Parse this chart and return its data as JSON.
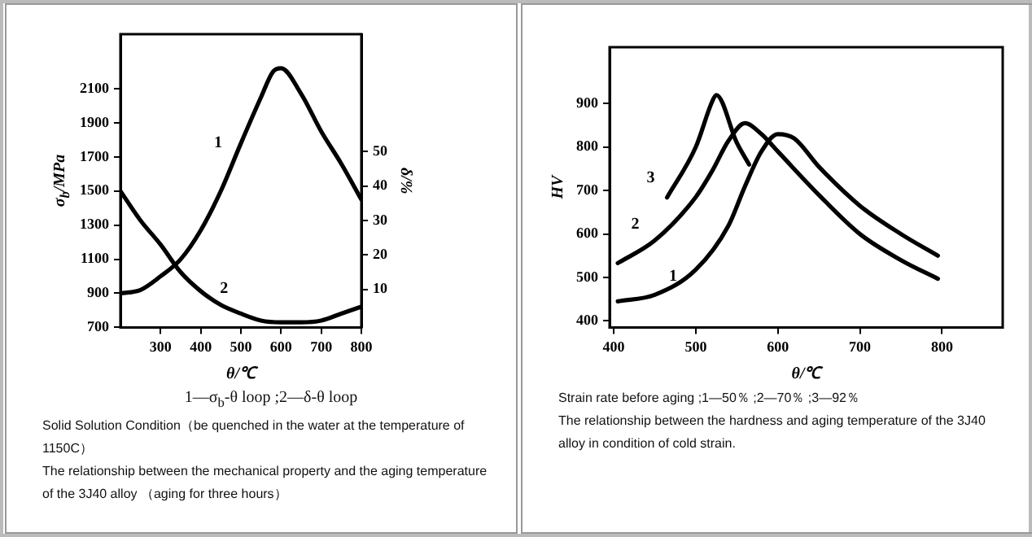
{
  "chart_data": [
    {
      "type": "line",
      "xlabel": "θ/℃",
      "ylabel": "σ$_{b}$/MPa",
      "y2label": "δ/%",
      "xlim": [
        200,
        800
      ],
      "xticks": [
        300,
        400,
        500,
        600,
        700,
        800
      ],
      "ylim": [
        700,
        2420
      ],
      "yticks": [
        700,
        900,
        1100,
        1300,
        1500,
        1700,
        1900,
        2100
      ],
      "y2lim": [
        -1,
        84
      ],
      "y2ticks": [
        10,
        20,
        30,
        40,
        50
      ],
      "grid": false,
      "legend": false,
      "marker": "none",
      "line_style": "solid",
      "series": [
        {
          "name": "1",
          "color": "#000000",
          "x": [
            200,
            250,
            300,
            350,
            400,
            450,
            500,
            550,
            580,
            600,
            650,
            700,
            750,
            800
          ],
          "values": [
            900,
            920,
            1000,
            1100,
            1270,
            1500,
            1780,
            2050,
            2200,
            2220,
            2070,
            1850,
            1660,
            1450
          ]
        },
        {
          "name": "2",
          "color": "#000000",
          "axis": "y2",
          "x": [
            200,
            250,
            300,
            350,
            400,
            450,
            500,
            550,
            600,
            650,
            700,
            750,
            800
          ],
          "values": [
            38.5,
            30,
            23,
            15,
            9.5,
            5.5,
            3,
            1,
            0.5,
            0.5,
            1,
            3,
            5
          ]
        }
      ],
      "annotations": [
        "1—σ$_{b}$-θ loop ;2—δ-θ loop",
        "Solid Solution Condition（be quenched in the water at the temperature of 1150C）",
        "The relationship between the mechanical property and the aging temperature of the 3J40 alloy （aging for three hours）"
      ]
    },
    {
      "type": "line",
      "xlabel": "θ/℃",
      "ylabel": "HV",
      "xlim": [
        395,
        874
      ],
      "xticks": [
        400,
        500,
        600,
        700,
        800
      ],
      "ylim": [
        385,
        1030
      ],
      "yticks": [
        400,
        500,
        600,
        700,
        800,
        900
      ],
      "grid": false,
      "legend": false,
      "marker": "none",
      "line_style": "solid",
      "series": [
        {
          "name": "1",
          "color": "#000000",
          "x": [
            405,
            450,
            500,
            540,
            560,
            580,
            600,
            620,
            650,
            700,
            750,
            795
          ],
          "values": [
            445,
            460,
            518,
            620,
            710,
            790,
            830,
            820,
            755,
            665,
            600,
            550
          ]
        },
        {
          "name": "2",
          "color": "#000000",
          "x": [
            405,
            450,
            500,
            520,
            540,
            560,
            580,
            600,
            650,
            700,
            750,
            795
          ],
          "values": [
            533,
            585,
            685,
            745,
            815,
            855,
            830,
            790,
            690,
            600,
            540,
            497
          ]
        },
        {
          "name": "3",
          "color": "#000000",
          "x": [
            465,
            500,
            520,
            525,
            550,
            565
          ],
          "values": [
            684,
            800,
            905,
            920,
            810,
            760
          ]
        }
      ],
      "annotations": [
        "Strain rate before aging ;1—50％ ;2—70％ ;3—92％",
        "The relationship between the hardness and aging temperature of the 3J40 alloy in condition of cold strain."
      ]
    }
  ]
}
